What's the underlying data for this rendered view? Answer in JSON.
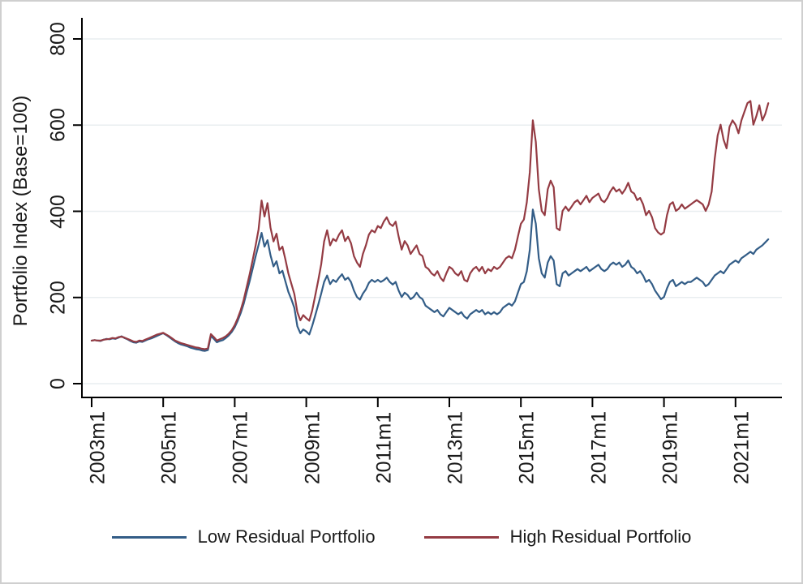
{
  "chart_data": {
    "type": "line",
    "ylabel": "Portfolio Index (Base=100)",
    "x_ticks": [
      "2003m1",
      "2005m1",
      "2007m1",
      "2009m1",
      "2011m1",
      "2013m1",
      "2015m1",
      "2017m1",
      "2019m1",
      "2021m1"
    ],
    "x_tick_month_offsets": [
      0,
      24,
      48,
      72,
      96,
      120,
      144,
      168,
      192,
      216
    ],
    "y_ticks": [
      "0",
      "200",
      "400",
      "600",
      "800"
    ],
    "y_tick_values": [
      0,
      200,
      400,
      600,
      800
    ],
    "ylim": [
      0,
      800
    ],
    "x_start": "2003m1",
    "x_step_months": 1,
    "n_points": 228,
    "grid": true,
    "legend_position": "bottom",
    "background_color": "#ffffff",
    "axis_color": "#000000",
    "grid_color": "#e9eef0",
    "series": [
      {
        "name": "Low Residual Portfolio",
        "color": "#335d87",
        "values": [
          100,
          101,
          100,
          99,
          102,
          104,
          103,
          105,
          104,
          107,
          110,
          106,
          103,
          99,
          96,
          95,
          98,
          97,
          100,
          103,
          105,
          108,
          111,
          114,
          117,
          113,
          108,
          103,
          98,
          94,
          91,
          89,
          87,
          84,
          82,
          80,
          79,
          77,
          76,
          78,
          111,
          104,
          96,
          99,
          101,
          106,
          112,
          120,
          131,
          146,
          164,
          185,
          212,
          238,
          266,
          295,
          322,
          350,
          318,
          333,
          298,
          272,
          284,
          256,
          262,
          237,
          213,
          196,
          176,
          133,
          117,
          126,
          121,
          114,
          134,
          158,
          183,
          209,
          236,
          251,
          231,
          241,
          236,
          246,
          254,
          241,
          246,
          236,
          216,
          201,
          195,
          209,
          219,
          234,
          241,
          236,
          241,
          236,
          240,
          246,
          236,
          230,
          236,
          216,
          201,
          211,
          206,
          196,
          201,
          211,
          201,
          196,
          181,
          176,
          171,
          166,
          171,
          161,
          156,
          166,
          176,
          171,
          166,
          161,
          166,
          156,
          151,
          161,
          166,
          171,
          166,
          171,
          161,
          166,
          161,
          166,
          161,
          166,
          176,
          181,
          186,
          181,
          191,
          211,
          231,
          236,
          261,
          311,
          404,
          371,
          291,
          256,
          246,
          281,
          296,
          286,
          231,
          226,
          256,
          261,
          251,
          256,
          261,
          266,
          261,
          266,
          271,
          261,
          266,
          271,
          276,
          266,
          261,
          266,
          276,
          281,
          276,
          281,
          271,
          276,
          286,
          271,
          266,
          256,
          261,
          251,
          236,
          241,
          231,
          216,
          206,
          196,
          201,
          221,
          236,
          241,
          226,
          231,
          236,
          231,
          236,
          236,
          241,
          246,
          241,
          236,
          226,
          231,
          241,
          251,
          256,
          261,
          256,
          266,
          276,
          281,
          286,
          281,
          291,
          296,
          301,
          306,
          301,
          311,
          316,
          321,
          328,
          335
        ]
      },
      {
        "name": "High Residual Portfolio",
        "color": "#943b43",
        "values": [
          100,
          101,
          100,
          100,
          102,
          103,
          104,
          106,
          105,
          108,
          109,
          107,
          104,
          101,
          98,
          97,
          100,
          99,
          102,
          105,
          108,
          111,
          114,
          116,
          118,
          114,
          110,
          105,
          100,
          97,
          94,
          92,
          90,
          88,
          86,
          84,
          83,
          81,
          80,
          82,
          115,
          108,
          100,
          103,
          106,
          110,
          116,
          124,
          136,
          152,
          171,
          194,
          224,
          254,
          286,
          320,
          358,
          425,
          388,
          419,
          362,
          330,
          348,
          310,
          318,
          288,
          256,
          232,
          208,
          166,
          147,
          159,
          152,
          146,
          170,
          204,
          239,
          277,
          330,
          356,
          321,
          336,
          331,
          346,
          356,
          331,
          341,
          326,
          296,
          281,
          271,
          301,
          321,
          346,
          356,
          351,
          366,
          361,
          376,
          386,
          371,
          366,
          376,
          341,
          311,
          331,
          321,
          301,
          311,
          321,
          301,
          296,
          271,
          266,
          256,
          251,
          261,
          246,
          238,
          256,
          271,
          266,
          256,
          251,
          261,
          241,
          237,
          256,
          266,
          271,
          261,
          271,
          256,
          266,
          261,
          271,
          266,
          271,
          281,
          291,
          296,
          291,
          311,
          341,
          371,
          381,
          421,
          491,
          611,
          561,
          451,
          401,
          391,
          451,
          471,
          456,
          361,
          356,
          401,
          411,
          401,
          411,
          421,
          426,
          416,
          426,
          436,
          421,
          431,
          436,
          441,
          426,
          421,
          431,
          446,
          456,
          446,
          451,
          441,
          451,
          466,
          446,
          441,
          426,
          431,
          416,
          391,
          401,
          386,
          361,
          351,
          346,
          351,
          391,
          416,
          421,
          401,
          406,
          416,
          406,
          411,
          416,
          421,
          426,
          421,
          416,
          401,
          416,
          446,
          521,
          576,
          601,
          566,
          546,
          596,
          611,
          601,
          581,
          611,
          631,
          651,
          656,
          601,
          621,
          646,
          611,
          626,
          651
        ]
      }
    ]
  }
}
